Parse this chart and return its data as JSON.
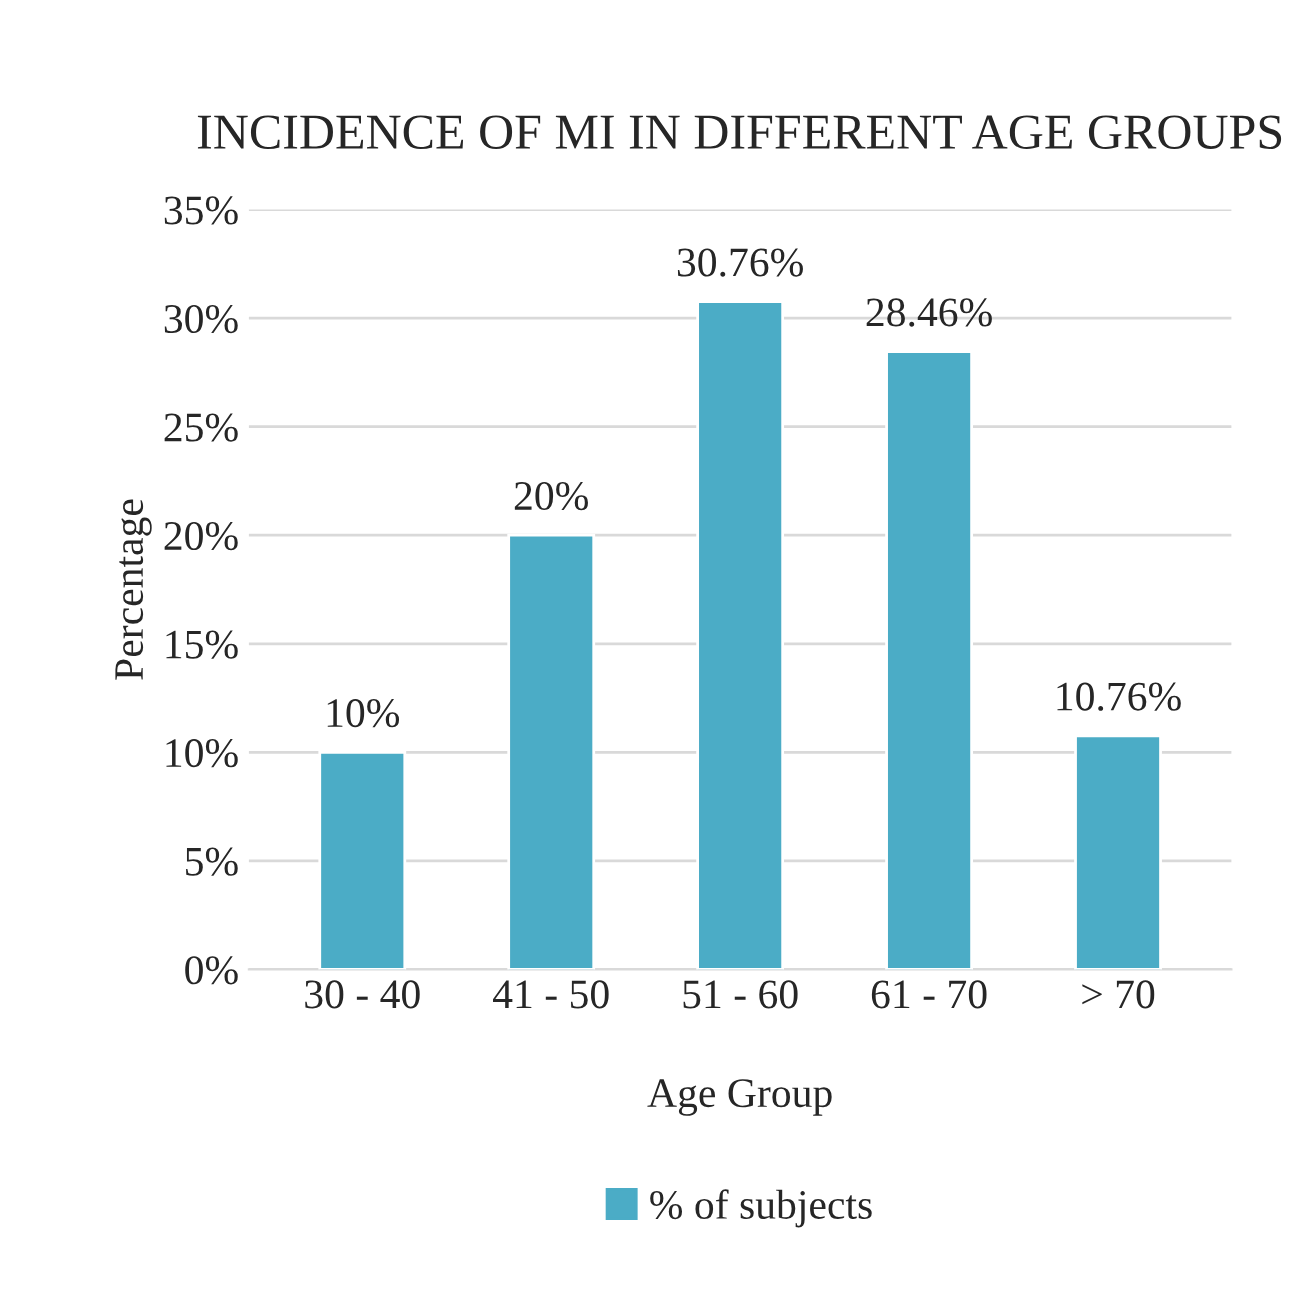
{
  "chart_data": {
    "type": "bar",
    "title": "INCIDENCE OF MI IN DIFFERENT AGE GROUPS",
    "xlabel": "Age Group",
    "ylabel": "Percentage",
    "categories": [
      "30 - 40",
      "41 - 50",
      "51 - 60",
      "61 - 70",
      "> 70"
    ],
    "series": [
      {
        "name": "% of subjects",
        "color": "#4bacc6",
        "values": [
          10,
          20,
          30.76,
          28.46,
          10.76
        ]
      }
    ],
    "value_labels": [
      "10%",
      "20%",
      "30.76%",
      "28.46%",
      "10.76%"
    ],
    "ylim": [
      0,
      35
    ],
    "yticks": [
      {
        "value": 0,
        "label": "0%"
      },
      {
        "value": 5,
        "label": "5%"
      },
      {
        "value": 10,
        "label": "10%"
      },
      {
        "value": 15,
        "label": "15%"
      },
      {
        "value": 20,
        "label": "20%"
      },
      {
        "value": 25,
        "label": "25%"
      },
      {
        "value": 30,
        "label": "30%"
      },
      {
        "value": 35,
        "label": "35%"
      }
    ],
    "grid": "y",
    "legend": "bottom"
  }
}
